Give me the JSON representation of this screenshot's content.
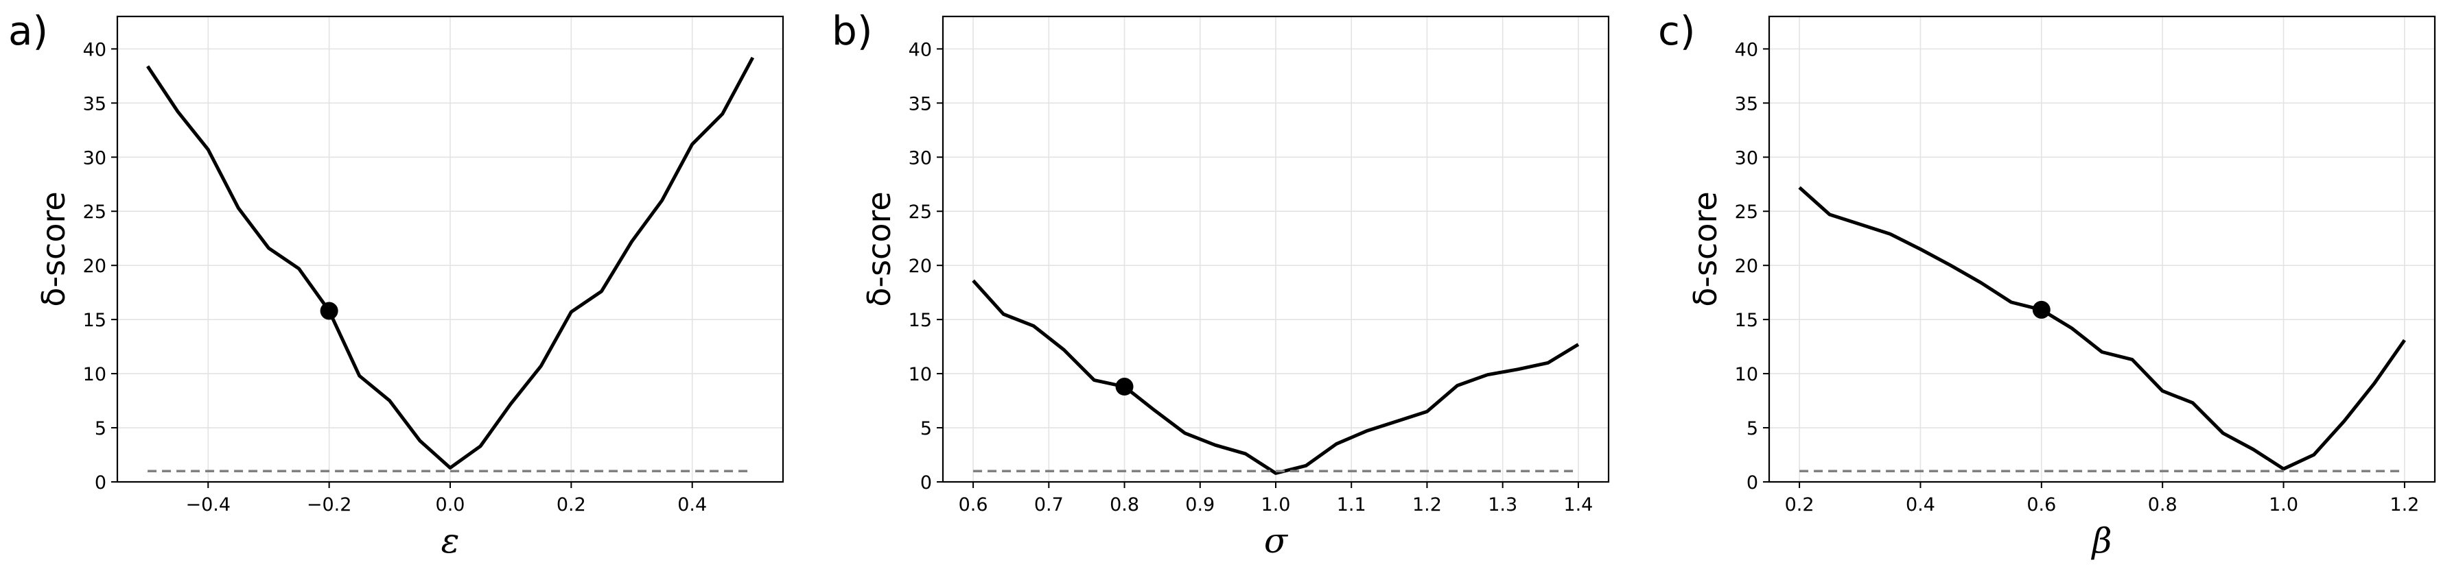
{
  "chart_data": [
    {
      "type": "line",
      "panel_label": "a)",
      "xlabel": "ε",
      "ylabel": "δ-score",
      "xlim": [
        -0.55,
        0.55
      ],
      "ylim": [
        0,
        43
      ],
      "xticks": [
        -0.4,
        -0.2,
        0.0,
        0.2,
        0.4
      ],
      "xtick_labels": [
        "−0.4",
        "−0.2",
        "0.0",
        "0.2",
        "0.4"
      ],
      "yticks": [
        0,
        5,
        10,
        15,
        20,
        25,
        30,
        35,
        40
      ],
      "ytick_labels": [
        "0",
        "5",
        "10",
        "15",
        "20",
        "25",
        "30",
        "35",
        "40"
      ],
      "grid": true,
      "series": [
        {
          "style": "solid",
          "color": "#000000",
          "x": [
            -0.5,
            -0.45,
            -0.4,
            -0.35,
            -0.3,
            -0.25,
            -0.2,
            -0.15,
            -0.1,
            -0.05,
            0.0,
            0.05,
            0.1,
            0.15,
            0.2,
            0.25,
            0.3,
            0.35,
            0.4,
            0.45,
            0.5
          ],
          "y": [
            38.4,
            34.2,
            30.7,
            25.3,
            21.6,
            19.7,
            15.8,
            9.8,
            7.5,
            3.8,
            1.3,
            3.3,
            7.2,
            10.7,
            15.7,
            17.6,
            22.2,
            26.0,
            31.2,
            34.0,
            39.2
          ]
        },
        {
          "style": "dashed",
          "color": "#808080",
          "x": [
            -0.5,
            0.5
          ],
          "y": [
            1.0,
            1.0
          ]
        }
      ],
      "marker": {
        "x": -0.2,
        "y": 15.8,
        "color": "#000000"
      }
    },
    {
      "type": "line",
      "panel_label": "b)",
      "xlabel": "σ",
      "ylabel": "δ-score",
      "xlim": [
        0.56,
        1.44
      ],
      "ylim": [
        0,
        43
      ],
      "xticks": [
        0.6,
        0.7,
        0.8,
        0.9,
        1.0,
        1.1,
        1.2,
        1.3,
        1.4
      ],
      "xtick_labels": [
        "0.6",
        "0.7",
        "0.8",
        "0.9",
        "1.0",
        "1.1",
        "1.2",
        "1.3",
        "1.4"
      ],
      "yticks": [
        0,
        5,
        10,
        15,
        20,
        25,
        30,
        35,
        40
      ],
      "ytick_labels": [
        "0",
        "5",
        "10",
        "15",
        "20",
        "25",
        "30",
        "35",
        "40"
      ],
      "grid": true,
      "series": [
        {
          "style": "solid",
          "color": "#000000",
          "x": [
            0.6,
            0.64,
            0.68,
            0.72,
            0.76,
            0.8,
            0.84,
            0.88,
            0.92,
            0.96,
            1.0,
            1.04,
            1.08,
            1.12,
            1.16,
            1.2,
            1.24,
            1.28,
            1.32,
            1.36,
            1.4
          ],
          "y": [
            18.6,
            15.5,
            14.4,
            12.2,
            9.4,
            8.8,
            6.6,
            4.5,
            3.4,
            2.6,
            0.8,
            1.5,
            3.5,
            4.7,
            5.6,
            6.5,
            8.9,
            9.9,
            10.4,
            11.0,
            12.7
          ]
        },
        {
          "style": "dashed",
          "color": "#808080",
          "x": [
            0.6,
            1.4
          ],
          "y": [
            1.0,
            1.0
          ]
        }
      ],
      "marker": {
        "x": 0.8,
        "y": 8.8,
        "color": "#000000"
      }
    },
    {
      "type": "line",
      "panel_label": "c)",
      "xlabel": "β",
      "ylabel": "δ-score",
      "xlim": [
        0.15,
        1.25
      ],
      "ylim": [
        0,
        43
      ],
      "xticks": [
        0.2,
        0.4,
        0.6,
        0.8,
        1.0,
        1.2
      ],
      "xtick_labels": [
        "0.2",
        "0.4",
        "0.6",
        "0.8",
        "1.0",
        "1.2"
      ],
      "yticks": [
        0,
        5,
        10,
        15,
        20,
        25,
        30,
        35,
        40
      ],
      "ytick_labels": [
        "0",
        "5",
        "10",
        "15",
        "20",
        "25",
        "30",
        "35",
        "40"
      ],
      "grid": true,
      "series": [
        {
          "style": "solid",
          "color": "#000000",
          "x": [
            0.2,
            0.25,
            0.3,
            0.35,
            0.4,
            0.45,
            0.5,
            0.55,
            0.6,
            0.65,
            0.7,
            0.75,
            0.8,
            0.85,
            0.9,
            0.95,
            1.0,
            1.05,
            1.1,
            1.15,
            1.2
          ],
          "y": [
            27.2,
            24.7,
            23.8,
            22.9,
            21.5,
            20.0,
            18.4,
            16.6,
            15.9,
            14.2,
            12.0,
            11.3,
            8.4,
            7.3,
            4.5,
            3.0,
            1.2,
            2.5,
            5.6,
            9.1,
            13.1
          ]
        },
        {
          "style": "dashed",
          "color": "#808080",
          "x": [
            0.2,
            1.2
          ],
          "y": [
            1.0,
            1.0
          ]
        }
      ],
      "marker": {
        "x": 0.6,
        "y": 15.9,
        "color": "#000000"
      }
    }
  ]
}
